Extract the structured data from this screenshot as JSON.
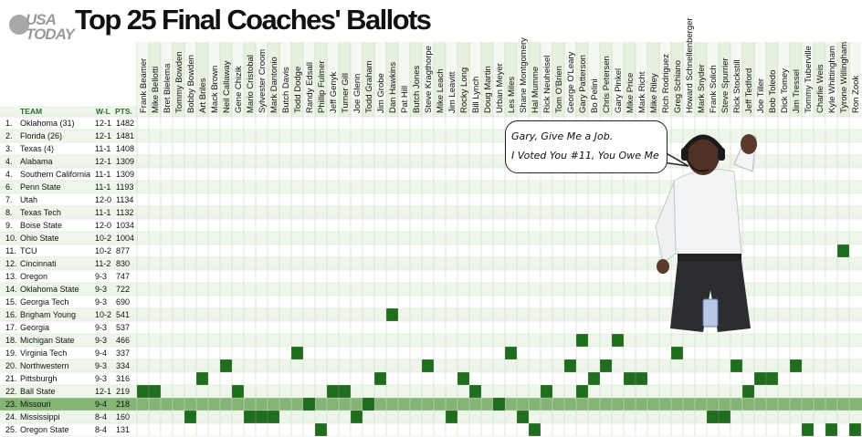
{
  "header": {
    "logo_top": "USA",
    "logo_bottom": "TODAY",
    "title": "Top 25 Final Coaches' Ballots"
  },
  "table_headers": {
    "team": "TEAM",
    "wl": "W-L",
    "pts": "PTS."
  },
  "speech_bubble": {
    "line1": "Gary, Give Me a Job.",
    "line2": "I Voted You #11, You Owe Me"
  },
  "colors": {
    "cell_green": "#1e6e1e",
    "grid_light": "#e3f0dd",
    "grid_alt": "#eef6ea",
    "highlight_row": "#84b574",
    "header_green": "#2e6e2e"
  },
  "chart_data": {
    "type": "table",
    "title": "Top 25 Final Coaches' Ballots",
    "coaches": [
      "Frank Beamer",
      "Mike Bellotti",
      "Bret Bielema",
      "Tommy Bowden",
      "Bobby Bowden",
      "Art Briles",
      "Mack Brown",
      "Neil Callaway",
      "Gene Chizik",
      "Mario Cristobal",
      "Sylvester Croom",
      "Mark Dantonio",
      "Butch Davis",
      "Todd Dodge",
      "Randy Edsall",
      "Phillip Fulmer",
      "Jeff Genyk",
      "Turner Gill",
      "Joe Glenn",
      "Todd Graham",
      "Jim Grobe",
      "Dan Hawkins",
      "Pat Hill",
      "Butch Jones",
      "Steve Kragthorpe",
      "Mike Leach",
      "Jim Leavitt",
      "Rocky Long",
      "Bill Lynch",
      "Doug Martin",
      "Urban Meyer",
      "Les Miles",
      "Shane Montgomery",
      "Hal Mumme",
      "Rick Neuheisel",
      "Tom O'Brien",
      "George O'Leary",
      "Gary Patterson",
      "Bo Pelini",
      "Chris Petersen",
      "Gary Pinkel",
      "Mike Price",
      "Mark Richt",
      "Mike Riley",
      "Rich Rodriguez",
      "Greg Schiano",
      "Howard Schnellenberger",
      "Mark Snyder",
      "Frank Solich",
      "Steve Spurrier",
      "Rick Stockstill",
      "Jeff Tedford",
      "Joe Tiller",
      "Bob Toledo",
      "Dick Tomey",
      "Jim Tressel",
      "Tommy Tuberville",
      "Charlie Weis",
      "Kyle Whittingham",
      "Tyrone Willingham",
      "Ron Zook"
    ],
    "teams": [
      {
        "rank": "1.",
        "team": "Oklahoma (31)",
        "wl": "12-1",
        "pts": 1482,
        "votes": []
      },
      {
        "rank": "2.",
        "team": "Florida (26)",
        "wl": "12-1",
        "pts": 1481,
        "votes": []
      },
      {
        "rank": "3.",
        "team": "Texas (4)",
        "wl": "11-1",
        "pts": 1408,
        "votes": []
      },
      {
        "rank": "4.",
        "team": "Alabama",
        "wl": "12-1",
        "pts": 1309,
        "votes": []
      },
      {
        "rank": "4.",
        "team": "Southern California",
        "wl": "11-1",
        "pts": 1309,
        "votes": []
      },
      {
        "rank": "6.",
        "team": "Penn State",
        "wl": "11-1",
        "pts": 1193,
        "votes": []
      },
      {
        "rank": "7.",
        "team": "Utah",
        "wl": "12-0",
        "pts": 1134,
        "votes": []
      },
      {
        "rank": "8.",
        "team": "Texas Tech",
        "wl": "11-1",
        "pts": 1132,
        "votes": []
      },
      {
        "rank": "9.",
        "team": "Boise State",
        "wl": "12-0",
        "pts": 1034,
        "votes": []
      },
      {
        "rank": "10.",
        "team": "Ohio State",
        "wl": "10-2",
        "pts": 1004,
        "votes": []
      },
      {
        "rank": "11.",
        "team": "TCU",
        "wl": "10-2",
        "pts": 877,
        "votes": [
          "Tyrone Willingham"
        ]
      },
      {
        "rank": "12.",
        "team": "Cincinnati",
        "wl": "11-2",
        "pts": 830,
        "votes": []
      },
      {
        "rank": "13.",
        "team": "Oregon",
        "wl": "9-3",
        "pts": 747,
        "votes": []
      },
      {
        "rank": "14.",
        "team": "Oklahoma State",
        "wl": "9-3",
        "pts": 722,
        "votes": []
      },
      {
        "rank": "15.",
        "team": "Georgia Tech",
        "wl": "9-3",
        "pts": 690,
        "votes": []
      },
      {
        "rank": "16.",
        "team": "Brigham Young",
        "wl": "10-2",
        "pts": 541,
        "votes": [
          "Dan Hawkins"
        ]
      },
      {
        "rank": "17.",
        "team": "Georgia",
        "wl": "9-3",
        "pts": 537,
        "votes": []
      },
      {
        "rank": "18.",
        "team": "Michigan State",
        "wl": "9-3",
        "pts": 466,
        "votes": [
          "Gary Patterson",
          "Gary Pinkel"
        ]
      },
      {
        "rank": "19.",
        "team": "Virginia Tech",
        "wl": "9-4",
        "pts": 337,
        "votes": [
          "Todd Dodge",
          "Les Miles",
          "Greg Schiano"
        ]
      },
      {
        "rank": "20.",
        "team": "Northwestern",
        "wl": "9-3",
        "pts": 334,
        "votes": [
          "Neil Callaway",
          "Steve Kragthorpe",
          "George O'Leary",
          "Chris Petersen",
          "Rick Stockstill",
          "Jim Tressel"
        ]
      },
      {
        "rank": "21.",
        "team": "Pittsburgh",
        "wl": "9-3",
        "pts": 316,
        "votes": [
          "Art Briles",
          "Jim Grobe",
          "Rocky Long",
          "Bo Pelini",
          "Mike Price",
          "Mark Richt",
          "Joe Tiller",
          "Bob Toledo"
        ]
      },
      {
        "rank": "22.",
        "team": "Ball State",
        "wl": "12-1",
        "pts": 219,
        "votes": [
          "Frank Beamer",
          "Mike Bellotti",
          "Gene Chizik",
          "Jeff Genyk",
          "Turner Gill",
          "Bill Lynch",
          "Rick Neuheisel",
          "Gary Patterson",
          "Jeff Tedford"
        ]
      },
      {
        "rank": "23.",
        "team": "Missouri",
        "wl": "9-4",
        "pts": 218,
        "votes": [
          "Randy Edsall",
          "Todd Graham",
          "Urban Meyer"
        ]
      },
      {
        "rank": "24.",
        "team": "Mississippi",
        "wl": "8-4",
        "pts": 160,
        "votes": [
          "Bobby Bowden",
          "Mario Cristobal",
          "Sylvester Croom",
          "Mark Dantonio",
          "Joe Glenn",
          "Jim Leavitt",
          "Shane Montgomery",
          "Frank Solich",
          "Steve Spurrier"
        ]
      },
      {
        "rank": "25.",
        "team": "Oregon State",
        "wl": "8-4",
        "pts": 131,
        "votes": [
          "Phillip Fulmer",
          "Hal Mumme",
          "Tommy Tuberville",
          "Kyle Whittingham",
          "Ron Zook"
        ]
      }
    ],
    "highlight_team": "Missouri"
  }
}
